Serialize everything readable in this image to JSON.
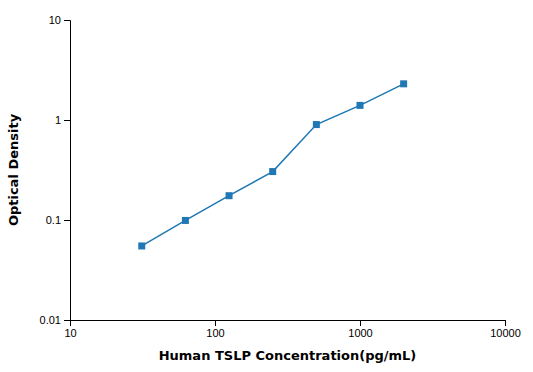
{
  "chart_data": {
    "type": "line",
    "x": [
      31.25,
      62.5,
      125,
      250,
      500,
      1000,
      2000
    ],
    "values": [
      0.055,
      0.099,
      0.175,
      0.305,
      0.9,
      1.4,
      2.3
    ],
    "xlabel": "Human TSLP Concentration(pg/mL)",
    "ylabel": "Optical Density",
    "xlim": [
      10,
      10000
    ],
    "ylim": [
      0.01,
      10
    ],
    "xticks": [
      10,
      100,
      1000,
      10000
    ],
    "yticks": [
      0.01,
      0.1,
      1,
      10
    ],
    "log": true,
    "marker": "square",
    "line_style": "solid"
  }
}
